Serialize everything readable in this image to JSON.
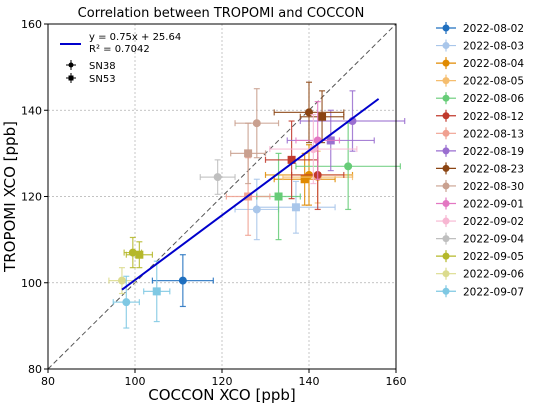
{
  "chart_data": {
    "type": "scatter",
    "title": "Correlation between TROPOMI and COCCON",
    "xlabel": "COCCON XCO [ppb]",
    "ylabel": "TROPOMI XCO [ppb]",
    "xlim": [
      80,
      160
    ],
    "ylim": [
      80,
      160
    ],
    "xticks": [
      "80",
      "100",
      "120",
      "140",
      "160"
    ],
    "yticks": [
      "80",
      "100",
      "120",
      "140",
      "160"
    ],
    "grid": true,
    "fit": {
      "label": "y = 0.75x + 25.64",
      "r2": "R² = 0.7042",
      "slope": 0.75,
      "intercept": 25.64,
      "x_range": [
        97,
        156
      ],
      "color": "#0000cc"
    },
    "one_to_one_line": true,
    "instrument_legend": [
      {
        "label": "SN38",
        "marker": "circle"
      },
      {
        "label": "SN53",
        "marker": "square"
      }
    ],
    "series": [
      {
        "name": "2022-08-02",
        "color": "#1f6fbf",
        "points": [
          {
            "x": 111,
            "y": 100.5,
            "xerr": 7,
            "yerr": 6,
            "marker": "circle"
          }
        ]
      },
      {
        "name": "2022-08-03",
        "color": "#a9c6ea",
        "points": [
          {
            "x": 128,
            "y": 117,
            "xerr": 5,
            "yerr": 7,
            "marker": "circle"
          },
          {
            "x": 137,
            "y": 117.5,
            "xerr": 9,
            "yerr": 6,
            "marker": "square"
          }
        ]
      },
      {
        "name": "2022-08-04",
        "color": "#e08a00",
        "points": [
          {
            "x": 140,
            "y": 125,
            "xerr": 10,
            "yerr": 7,
            "marker": "circle"
          },
          {
            "x": 139,
            "y": 124,
            "xerr": 7,
            "yerr": 6,
            "marker": "square"
          }
        ]
      },
      {
        "name": "2022-08-05",
        "color": "#f5bd6e",
        "points": [
          {
            "x": 142,
            "y": 124.5,
            "xerr": 8,
            "yerr": 6,
            "marker": "circle"
          }
        ]
      },
      {
        "name": "2022-08-06",
        "color": "#66cc77",
        "points": [
          {
            "x": 149,
            "y": 127,
            "xerr": 12,
            "yerr": 10,
            "marker": "circle"
          },
          {
            "x": 133,
            "y": 120,
            "xerr": 5,
            "yerr": 10,
            "marker": "square"
          }
        ]
      },
      {
        "name": "2022-08-12",
        "color": "#c0392b",
        "points": [
          {
            "x": 142,
            "y": 125,
            "xerr": 6,
            "yerr": 8,
            "marker": "circle"
          },
          {
            "x": 136,
            "y": 128.5,
            "xerr": 6,
            "yerr": 9,
            "marker": "square"
          }
        ]
      },
      {
        "name": "2022-08-13",
        "color": "#f0a090",
        "points": [
          {
            "x": 126,
            "y": 120,
            "xerr": 5,
            "yerr": 9,
            "marker": "square"
          }
        ]
      },
      {
        "name": "2022-08-19",
        "color": "#9a6ed0",
        "points": [
          {
            "x": 150,
            "y": 137.5,
            "xerr": 12,
            "yerr": 7,
            "marker": "circle"
          },
          {
            "x": 145,
            "y": 133,
            "xerr": 10,
            "yerr": 7,
            "marker": "square"
          }
        ]
      },
      {
        "name": "2022-08-23",
        "color": "#8b4513",
        "points": [
          {
            "x": 140,
            "y": 139.5,
            "xerr": 8,
            "yerr": 7,
            "marker": "circle"
          },
          {
            "x": 143,
            "y": 138.5,
            "xerr": 5,
            "yerr": 6,
            "marker": "square"
          }
        ]
      },
      {
        "name": "2022-08-30",
        "color": "#c9a08f",
        "points": [
          {
            "x": 128,
            "y": 137,
            "xerr": 5,
            "yerr": 8,
            "marker": "circle"
          },
          {
            "x": 126,
            "y": 130,
            "xerr": 4,
            "yerr": 7,
            "marker": "square"
          }
        ]
      },
      {
        "name": "2022-09-01",
        "color": "#e377c2",
        "points": [
          {
            "x": 142,
            "y": 133,
            "xerr": 5,
            "yerr": 9,
            "marker": "circle"
          }
        ]
      },
      {
        "name": "2022-09-02",
        "color": "#f7b6d2",
        "points": [
          {
            "x": 141,
            "y": 131,
            "xerr": 10,
            "yerr": 8,
            "marker": "circle"
          }
        ]
      },
      {
        "name": "2022-09-04",
        "color": "#bfbfbf",
        "points": [
          {
            "x": 119,
            "y": 124.5,
            "xerr": 4,
            "yerr": 4,
            "marker": "circle"
          }
        ]
      },
      {
        "name": "2022-09-05",
        "color": "#b5b82a",
        "points": [
          {
            "x": 99.5,
            "y": 107,
            "xerr": 2,
            "yerr": 3.5,
            "marker": "circle"
          },
          {
            "x": 101,
            "y": 106.5,
            "xerr": 3,
            "yerr": 3,
            "marker": "square"
          }
        ]
      },
      {
        "name": "2022-09-06",
        "color": "#dbdb8d",
        "points": [
          {
            "x": 97,
            "y": 100.5,
            "xerr": 3,
            "yerr": 3,
            "marker": "circle"
          }
        ]
      },
      {
        "name": "2022-09-07",
        "color": "#7ec8e3",
        "points": [
          {
            "x": 98,
            "y": 95.5,
            "xerr": 3,
            "yerr": 6,
            "marker": "circle"
          },
          {
            "x": 105,
            "y": 98,
            "xerr": 3,
            "yerr": 7,
            "marker": "square"
          }
        ]
      }
    ]
  }
}
